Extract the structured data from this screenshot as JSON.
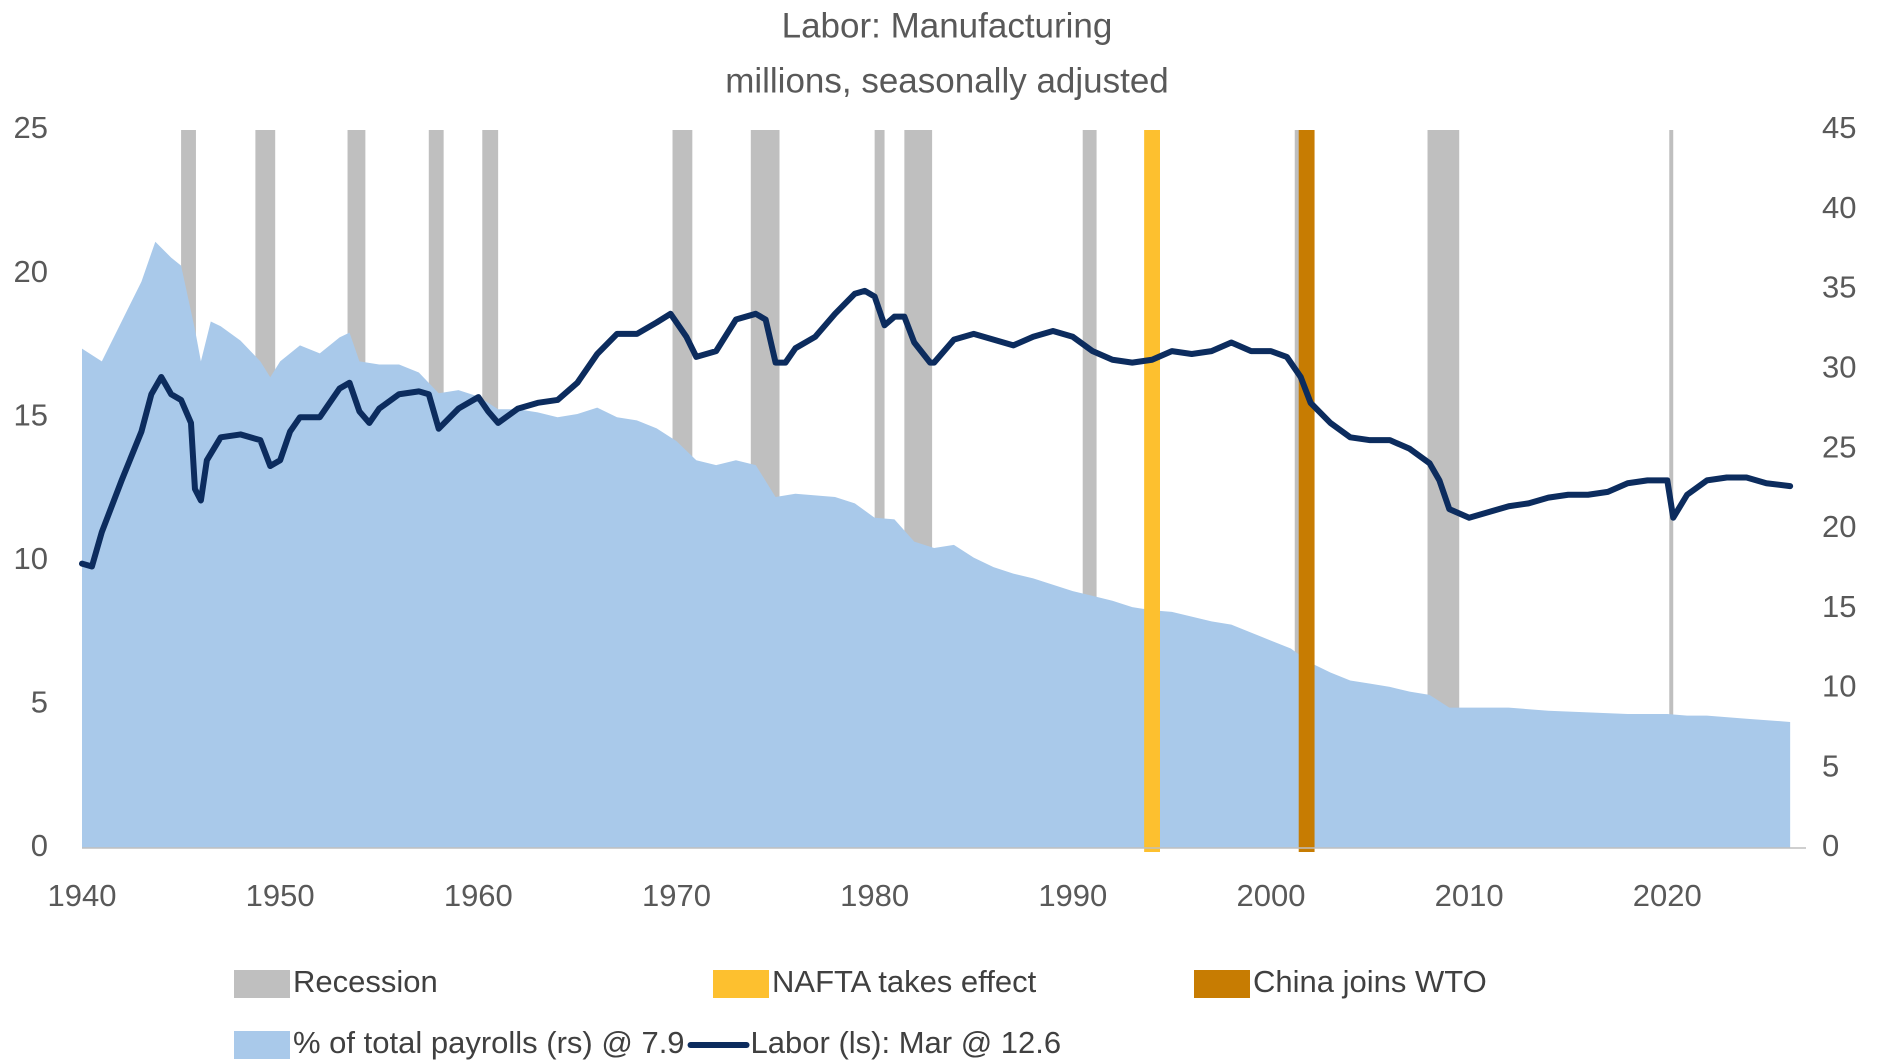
{
  "chart_data": {
    "type": "line",
    "title": "Labor: Manufacturing",
    "subtitle": "millions, seasonally adjusted",
    "xlim": [
      1940,
      2027
    ],
    "xticks": [
      1940,
      1950,
      1960,
      1970,
      1980,
      1990,
      2000,
      2010,
      2020
    ],
    "ylim": [
      0,
      25
    ],
    "yticks": [
      0,
      5,
      10,
      15,
      20,
      25
    ],
    "y2lim": [
      0,
      45
    ],
    "y2ticks": [
      0,
      5,
      10,
      15,
      20,
      25,
      30,
      35,
      40,
      45
    ],
    "bands": [
      {
        "name": "Recession",
        "color": "#bfbfbf",
        "layer": "back",
        "spans": [
          [
            1945.0,
            1945.75
          ],
          [
            1948.75,
            1949.75
          ],
          [
            1953.4,
            1954.3
          ],
          [
            1957.5,
            1958.25
          ],
          [
            1960.2,
            1961.0
          ],
          [
            1969.8,
            1970.8
          ],
          [
            1973.75,
            1975.2
          ],
          [
            1980.0,
            1980.5
          ],
          [
            1981.5,
            1982.9
          ],
          [
            1990.5,
            1991.2
          ],
          [
            2001.2,
            2001.9
          ],
          [
            2007.9,
            2009.5
          ],
          [
            2020.1,
            2020.3
          ]
        ]
      },
      {
        "name": "NAFTA takes effect",
        "color": "#fdc02f",
        "layer": "front",
        "spans": [
          [
            1993.6,
            1994.4
          ]
        ]
      },
      {
        "name": "China joins WTO",
        "color": "#c77c02",
        "layer": "front",
        "spans": [
          [
            2001.4,
            2002.2
          ]
        ]
      }
    ],
    "series": [
      {
        "name": "% of total payrolls (rs) @ 7.9",
        "type": "area",
        "axis": "y2",
        "color": "#a9c9ea",
        "x": [
          1940,
          1941,
          1942,
          1943,
          1943.7,
          1944.5,
          1945,
          1945.7,
          1946,
          1946.5,
          1947,
          1948,
          1949,
          1949.5,
          1950,
          1951,
          1952,
          1953,
          1953.5,
          1954,
          1955,
          1956,
          1957,
          1958,
          1959,
          1960,
          1961,
          1962,
          1963,
          1964,
          1965,
          1966,
          1967,
          1968,
          1969,
          1970,
          1971,
          1972,
          1973,
          1974,
          1975,
          1976,
          1977,
          1978,
          1979,
          1980,
          1981,
          1982,
          1983,
          1984,
          1985,
          1986,
          1987,
          1988,
          1989,
          1990,
          1991,
          1992,
          1993,
          1994,
          1995,
          1996,
          1997,
          1998,
          1999,
          2000,
          2001,
          2002,
          2003,
          2004,
          2005,
          2006,
          2007,
          2008,
          2009,
          2010,
          2012,
          2014,
          2016,
          2018,
          2020,
          2021,
          2022,
          2024,
          2026.2
        ],
        "values": [
          31.3,
          30.5,
          33.0,
          35.5,
          38.0,
          37.0,
          36.5,
          32.5,
          30.5,
          33.0,
          32.7,
          31.8,
          30.5,
          29.5,
          30.5,
          31.5,
          31.0,
          32.0,
          32.3,
          30.5,
          30.3,
          30.3,
          29.8,
          28.5,
          28.7,
          28.3,
          27.5,
          27.5,
          27.3,
          27.0,
          27.2,
          27.6,
          27.0,
          26.8,
          26.3,
          25.5,
          24.3,
          24.0,
          24.3,
          24.0,
          22.0,
          22.2,
          22.1,
          22.0,
          21.6,
          20.7,
          20.6,
          19.2,
          18.8,
          19.0,
          18.2,
          17.6,
          17.2,
          16.9,
          16.5,
          16.1,
          15.8,
          15.5,
          15.1,
          14.9,
          14.8,
          14.5,
          14.2,
          14.0,
          13.5,
          13.0,
          12.5,
          11.6,
          11.0,
          10.5,
          10.3,
          10.1,
          9.8,
          9.6,
          8.8,
          8.8,
          8.8,
          8.6,
          8.5,
          8.4,
          8.4,
          8.3,
          8.3,
          8.1,
          7.9
        ]
      },
      {
        "name": "Labor (ls): Mar @ 12.6",
        "type": "line",
        "axis": "y",
        "color": "#0c2c5e",
        "x": [
          1940,
          1940.5,
          1941,
          1942,
          1943,
          1943.5,
          1944,
          1944.5,
          1945,
          1945.5,
          1945.7,
          1946,
          1946.3,
          1947,
          1948,
          1949,
          1949.5,
          1950,
          1950.5,
          1951,
          1952,
          1953,
          1953.5,
          1954,
          1954.5,
          1955,
          1956,
          1957,
          1957.5,
          1958,
          1959,
          1960,
          1960.5,
          1961,
          1962,
          1963,
          1964,
          1965,
          1966,
          1967,
          1968,
          1969,
          1969.7,
          1970.5,
          1971,
          1972,
          1973,
          1974,
          1974.5,
          1975,
          1975.5,
          1976,
          1977,
          1978,
          1979,
          1979.5,
          1980,
          1980.5,
          1981,
          1981.5,
          1982,
          1982.8,
          1983,
          1984,
          1985,
          1986,
          1987,
          1988,
          1989,
          1990,
          1991,
          1992,
          1993,
          1994,
          1995,
          1996,
          1997,
          1998,
          1999,
          2000,
          2000.8,
          2001.5,
          2002,
          2003,
          2004,
          2005,
          2006,
          2007,
          2008,
          2008.5,
          2009,
          2010,
          2011,
          2012,
          2013,
          2014,
          2015,
          2016,
          2017,
          2018,
          2019,
          2020,
          2020.3,
          2021,
          2022,
          2023,
          2024,
          2025,
          2026.2
        ],
        "values": [
          9.9,
          9.8,
          11.0,
          12.8,
          14.5,
          15.8,
          16.4,
          15.8,
          15.6,
          14.8,
          12.5,
          12.1,
          13.5,
          14.3,
          14.4,
          14.2,
          13.3,
          13.5,
          14.5,
          15.0,
          15.0,
          16.0,
          16.2,
          15.2,
          14.8,
          15.3,
          15.8,
          15.9,
          15.8,
          14.6,
          15.3,
          15.7,
          15.2,
          14.8,
          15.3,
          15.5,
          15.6,
          16.2,
          17.2,
          17.9,
          17.9,
          18.3,
          18.6,
          17.8,
          17.1,
          17.3,
          18.4,
          18.6,
          18.4,
          16.9,
          16.9,
          17.4,
          17.8,
          18.6,
          19.3,
          19.4,
          19.2,
          18.2,
          18.5,
          18.5,
          17.6,
          16.9,
          16.9,
          17.7,
          17.9,
          17.7,
          17.5,
          17.8,
          18.0,
          17.8,
          17.3,
          17.0,
          16.9,
          17.0,
          17.3,
          17.2,
          17.3,
          17.6,
          17.3,
          17.3,
          17.1,
          16.4,
          15.5,
          14.8,
          14.3,
          14.2,
          14.2,
          13.9,
          13.4,
          12.8,
          11.8,
          11.5,
          11.7,
          11.9,
          12.0,
          12.2,
          12.3,
          12.3,
          12.4,
          12.7,
          12.8,
          12.8,
          11.5,
          12.3,
          12.8,
          12.9,
          12.9,
          12.7,
          12.6
        ]
      }
    ]
  }
}
